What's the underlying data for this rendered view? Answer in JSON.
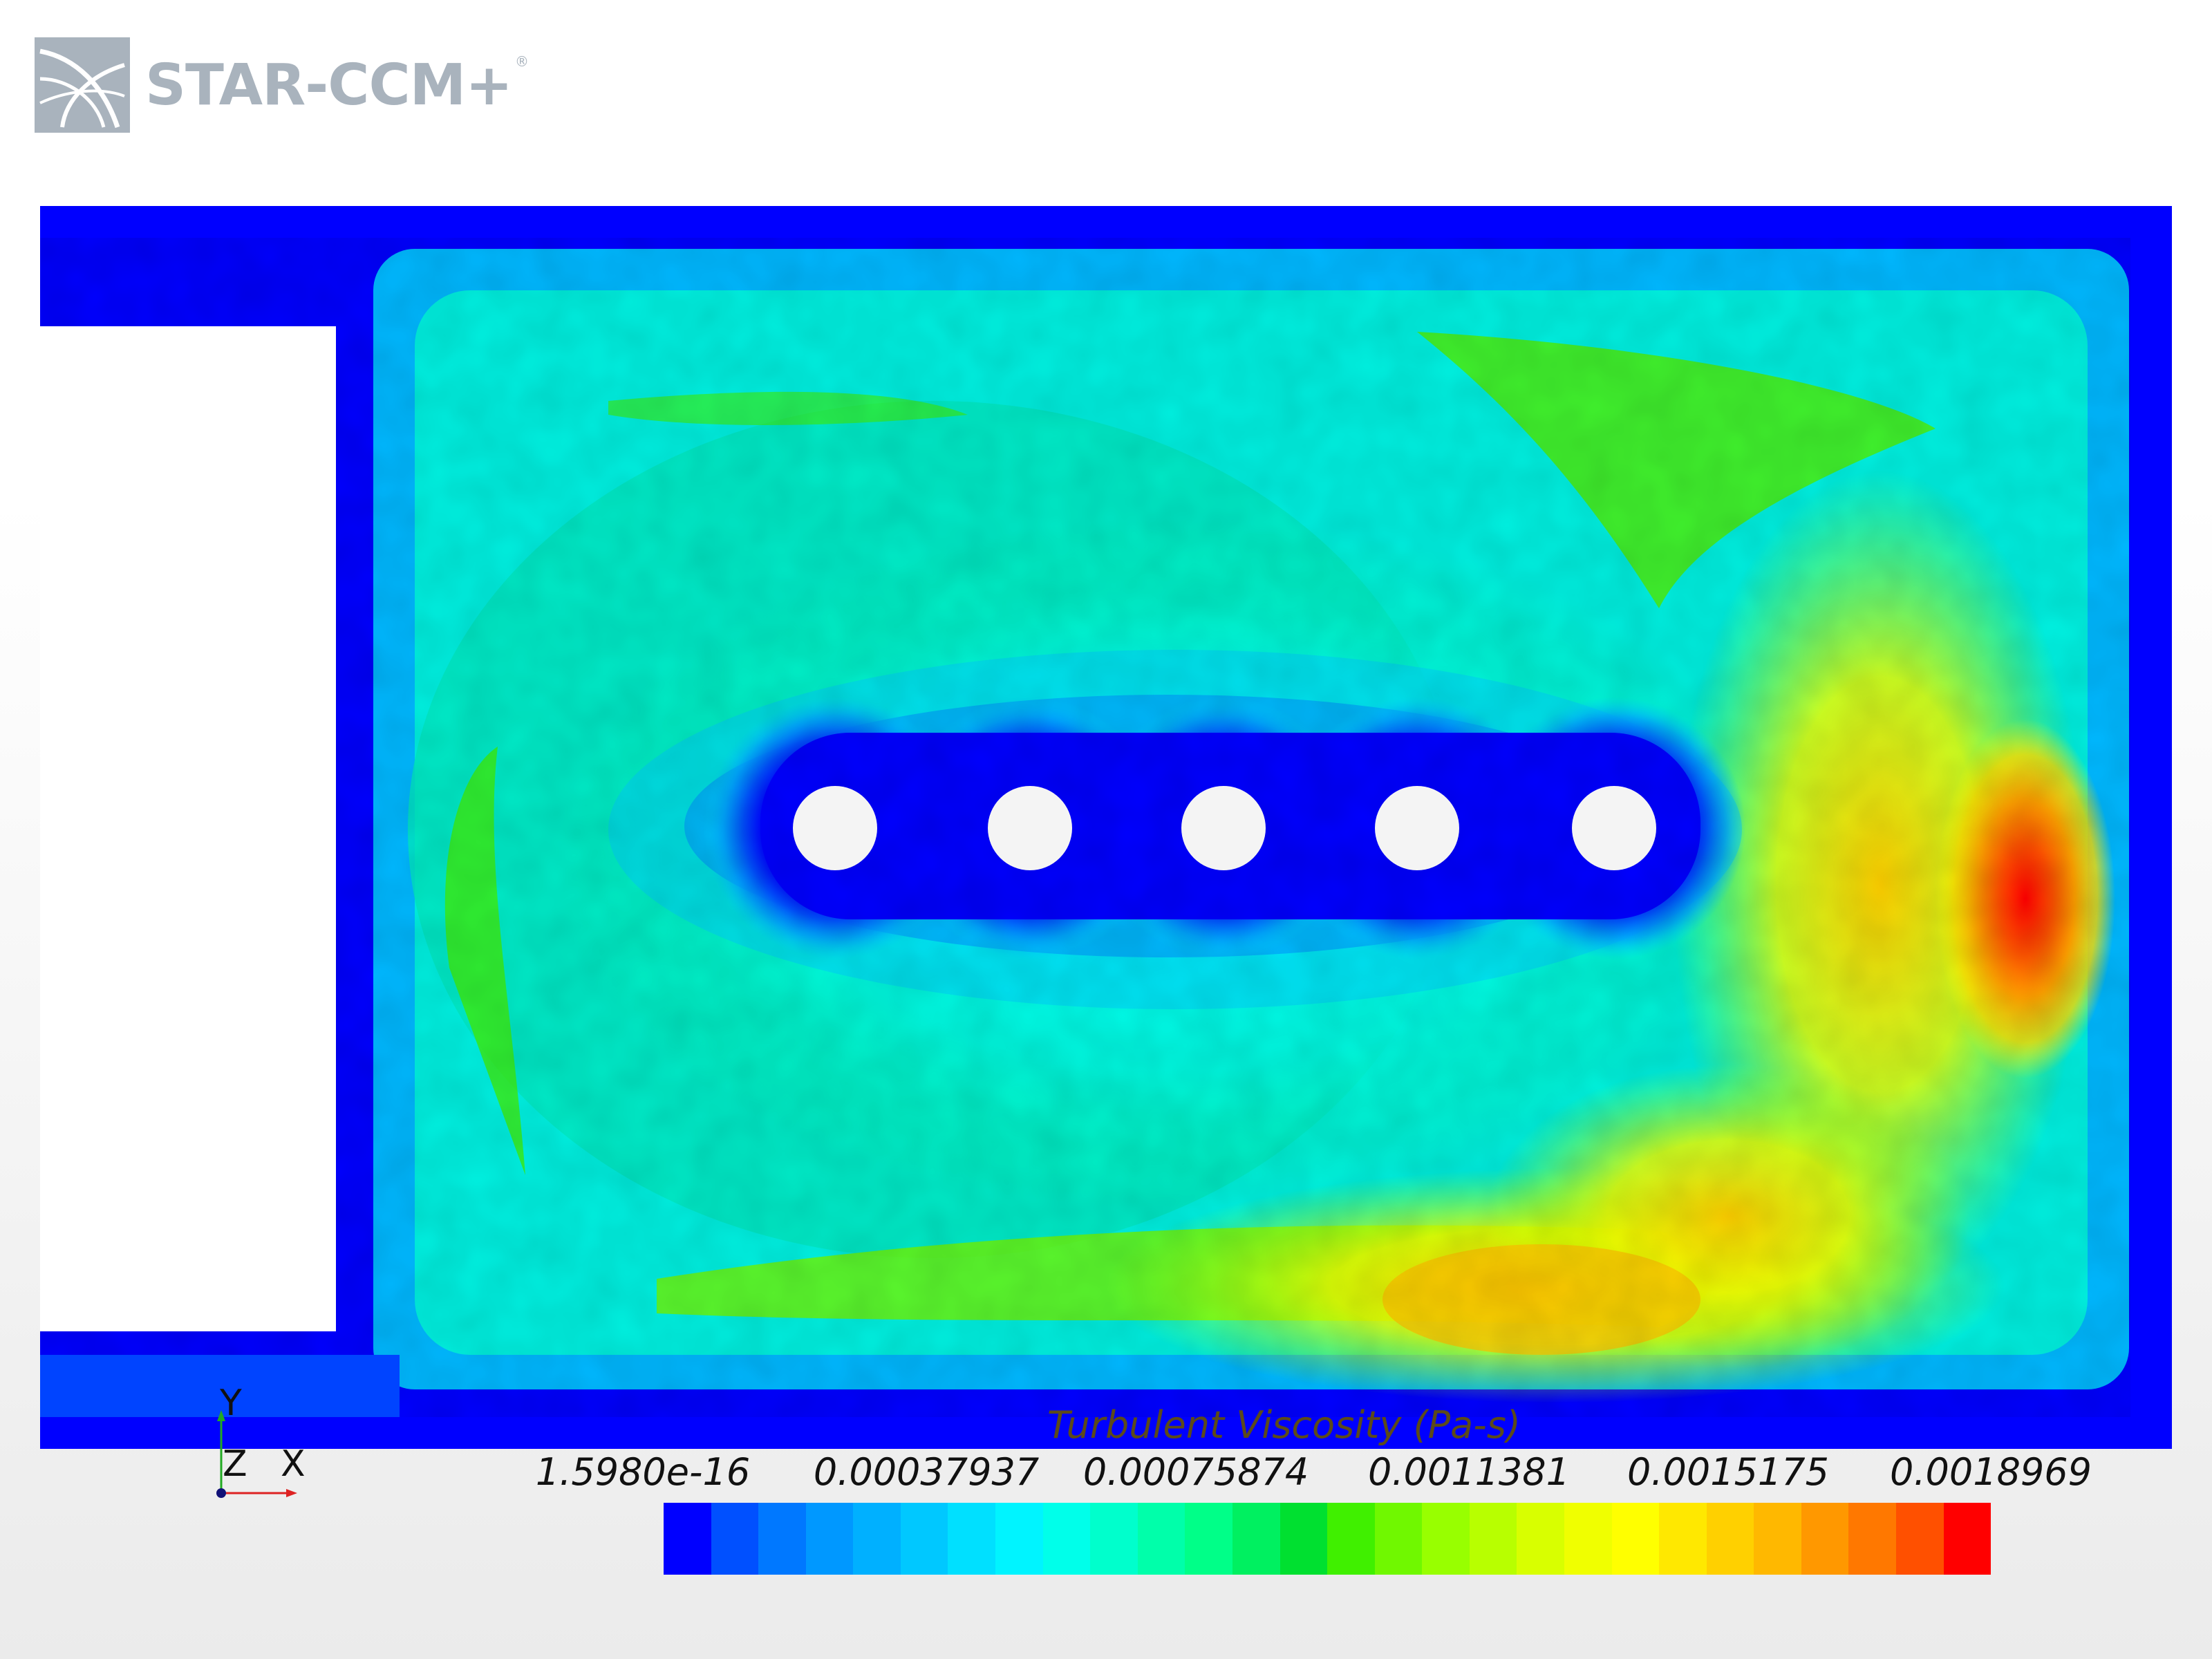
{
  "app": {
    "logo_text": "STAR-CCM+",
    "logo_reg": "®"
  },
  "scene": {
    "background_color": "#0000ff",
    "cell_colors": [
      "#00a8ff",
      "#00d8ff",
      "#00f0e0",
      "#00f8b0",
      "#40f000",
      "#a8f000",
      "#f8f800",
      "#ffc000",
      "#ff8000",
      "#ff0000"
    ]
  },
  "legend": {
    "title": "Turbulent Viscosity (Pa-s)",
    "tick_labels": [
      "1.5980e-16",
      "0.00037937",
      "0.00075874",
      "0.0011381",
      "0.0015175",
      "0.0018969"
    ],
    "colors": [
      "#0000ff",
      "#0050ff",
      "#0078ff",
      "#0098ff",
      "#00b0ff",
      "#00c8ff",
      "#00e0ff",
      "#00f4ff",
      "#00ffea",
      "#00ffcc",
      "#00ffaa",
      "#00ff88",
      "#00f060",
      "#00e030",
      "#40f000",
      "#70f800",
      "#98ff00",
      "#b8ff00",
      "#d8ff00",
      "#f0ff00",
      "#ffff00",
      "#ffe800",
      "#ffd000",
      "#ffb800",
      "#ff9800",
      "#ff7800",
      "#ff5000",
      "#ff0000"
    ]
  },
  "axes_triad": {
    "y_label": "Y",
    "z_label": "Z",
    "x_label": "X"
  }
}
